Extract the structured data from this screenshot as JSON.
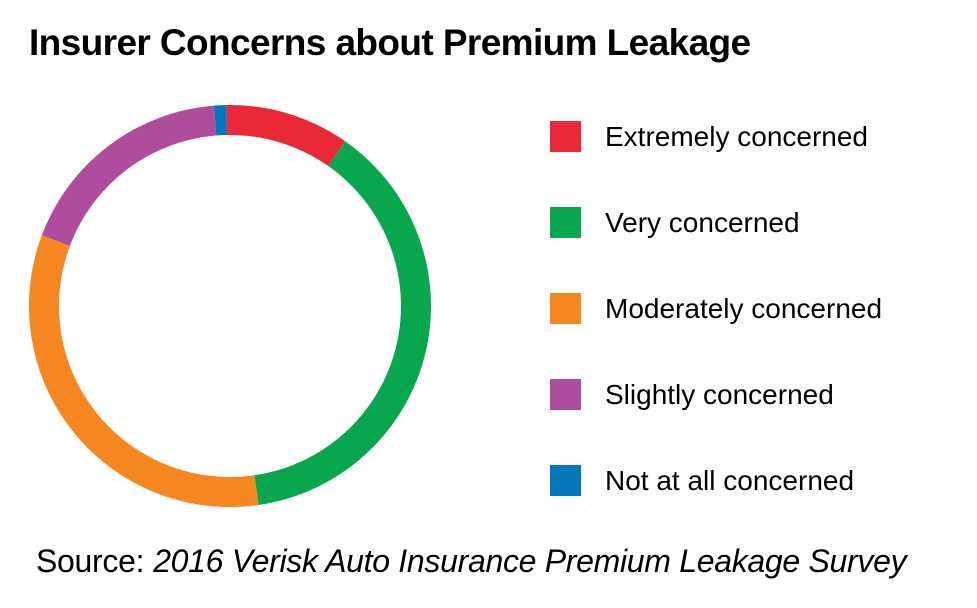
{
  "chart_data": {
    "type": "pie",
    "subtype": "donut-ring",
    "title": "Insurer Concerns about Premium Leakage",
    "categories": [
      "Extremely concerned",
      "Very concerned",
      "Moderately concerned",
      "Slightly concerned",
      "Not at all concerned"
    ],
    "values": [
      10,
      38,
      33,
      18,
      1
    ],
    "slices": [
      {
        "label": "Extremely concerned",
        "value_pct": 10,
        "color": "#E92938"
      },
      {
        "label": "Very concerned",
        "value_pct": 38,
        "color": "#08A64F"
      },
      {
        "label": "Moderately concerned",
        "value_pct": 33,
        "color": "#F6861F"
      },
      {
        "label": "Slightly concerned",
        "value_pct": 18,
        "color": "#AE4D9E"
      },
      {
        "label": "Not at all concerned",
        "value_pct": 1,
        "color": "#0578BC"
      }
    ],
    "start_angle_deg": -1,
    "direction": "clockwise",
    "donut_hole_ratio": 0.85,
    "legend_position": "right",
    "data_labels_shown": false,
    "background_color": "#FFFFFF",
    "text_color": "#000000"
  },
  "source": {
    "prefix": "Source:",
    "text": "2016 Verisk Auto Insurance Premium Leakage Survey"
  }
}
